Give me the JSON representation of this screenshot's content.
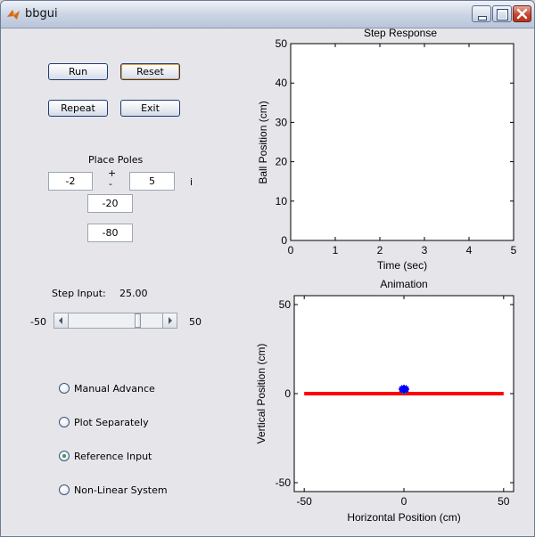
{
  "window": {
    "title": "bbgui"
  },
  "buttons": {
    "run": "Run",
    "reset": "Reset",
    "repeat": "Repeat",
    "exit": "Exit"
  },
  "poles": {
    "title": "Place Poles",
    "plus": "+",
    "minus": "-",
    "real": "-2",
    "imag": "5",
    "imag_unit": "i",
    "pole3": "-20",
    "pole4": "-80"
  },
  "step_input": {
    "label": "Step Input:",
    "value": "25.00",
    "min_label": "-50",
    "max_label": "50",
    "slider_value": 25,
    "slider_min": -50,
    "slider_max": 50
  },
  "options": [
    {
      "label": "Manual Advance",
      "checked": false
    },
    {
      "label": "Plot Separately",
      "checked": false
    },
    {
      "label": "Reference Input",
      "checked": true
    },
    {
      "label": "Non-Linear System",
      "checked": false
    }
  ],
  "chart_data": [
    {
      "type": "line",
      "title": "Step Response",
      "xlabel": "Time (sec)",
      "ylabel": "Ball Position (cm)",
      "xlim": [
        0,
        5
      ],
      "ylim": [
        0,
        50
      ],
      "xticks": [
        "0",
        "1",
        "2",
        "3",
        "4",
        "5"
      ],
      "yticks": [
        "0",
        "10",
        "20",
        "30",
        "40",
        "50"
      ],
      "series": []
    },
    {
      "type": "scatter",
      "title": "Animation",
      "xlabel": "Horizontal Position (cm)",
      "ylabel": "Vertical Position (cm)",
      "xlim": [
        -55,
        55
      ],
      "ylim": [
        -55,
        55
      ],
      "xticks": [
        "-50",
        "0",
        "50"
      ],
      "yticks": [
        "-50",
        "0",
        "50"
      ],
      "beam": {
        "x": [
          -50,
          50
        ],
        "y": [
          0,
          0
        ],
        "color": "#ff0000"
      },
      "ball": {
        "x": 0,
        "y": 2.5,
        "color": "#0000ff"
      },
      "pivot": {
        "x": 0,
        "y": 0,
        "color": "#2fa84f"
      }
    }
  ]
}
